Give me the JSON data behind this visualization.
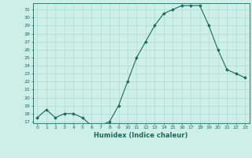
{
  "x": [
    0,
    1,
    2,
    3,
    4,
    5,
    6,
    7,
    8,
    9,
    10,
    11,
    12,
    13,
    14,
    15,
    16,
    17,
    18,
    19,
    20,
    21,
    22,
    23
  ],
  "y": [
    17.5,
    18.5,
    17.5,
    18.0,
    18.0,
    17.5,
    16.5,
    16.5,
    17.0,
    19.0,
    22.0,
    25.0,
    27.0,
    29.0,
    30.5,
    31.0,
    31.5,
    31.5,
    31.5,
    29.0,
    26.0,
    23.5,
    23.0,
    22.5
  ],
  "xlabel": "Humidex (Indice chaleur)",
  "ylabel": "",
  "xlim": [
    -0.5,
    23.5
  ],
  "ylim": [
    16.8,
    31.8
  ],
  "yticks": [
    17,
    18,
    19,
    20,
    21,
    22,
    23,
    24,
    25,
    26,
    27,
    28,
    29,
    30,
    31
  ],
  "xticks": [
    0,
    1,
    2,
    3,
    4,
    5,
    6,
    7,
    8,
    9,
    10,
    11,
    12,
    13,
    14,
    15,
    16,
    17,
    18,
    19,
    20,
    21,
    22,
    23
  ],
  "line_color": "#1a6b5a",
  "marker_color": "#1a6b5a",
  "bg_color": "#ceeee8",
  "grid_color": "#a8d8d0",
  "tick_label_color": "#1a6b5a",
  "xlabel_color": "#1a6b5a",
  "axis_color": "#1a6b5a"
}
